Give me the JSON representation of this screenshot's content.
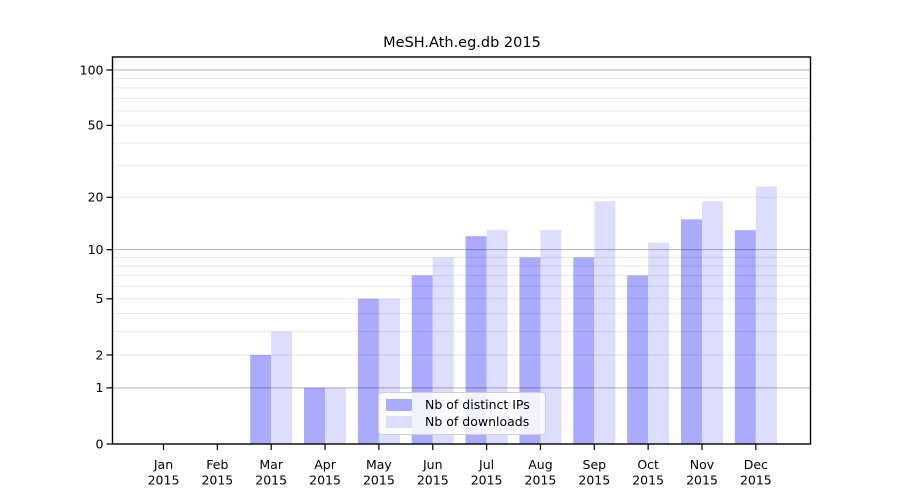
{
  "figure": {
    "background": "#ffffff",
    "frame_color": "#000000",
    "gridline_minor_color": "#e8e8e8",
    "gridline_major_color": "#b5b5b5"
  },
  "chart_data": {
    "type": "bar",
    "title": "MeSH.Ath.eg.db 2015",
    "categories": [
      "Jan",
      "Feb",
      "Mar",
      "Apr",
      "May",
      "Jun",
      "Jul",
      "Aug",
      "Sep",
      "Oct",
      "Nov",
      "Dec"
    ],
    "x_tick_year": "2015",
    "series": [
      {
        "name": "Nb of distinct IPs",
        "color": "#aaaaff",
        "values": [
          0,
          0,
          2,
          1,
          5,
          7,
          12,
          9,
          9,
          7,
          15,
          13
        ]
      },
      {
        "name": "Nb of downloads",
        "color": "#ddddff",
        "values": [
          0,
          0,
          3,
          1,
          5,
          9,
          13,
          13,
          19,
          11,
          19,
          23
        ]
      }
    ],
    "yscale": "log1p",
    "ylim": [
      0,
      119
    ],
    "y_tick_labels": [
      100,
      50,
      20,
      10,
      5,
      2,
      1,
      0
    ],
    "gridlines_minor": [
      2,
      3,
      4,
      5,
      6,
      7,
      8,
      9,
      20,
      30,
      40,
      50,
      60,
      70,
      80,
      90
    ],
    "gridlines_major": [
      1,
      10,
      100
    ],
    "grid": "horizontal, drawn over bars",
    "legend_position": "inside lower center-right"
  }
}
